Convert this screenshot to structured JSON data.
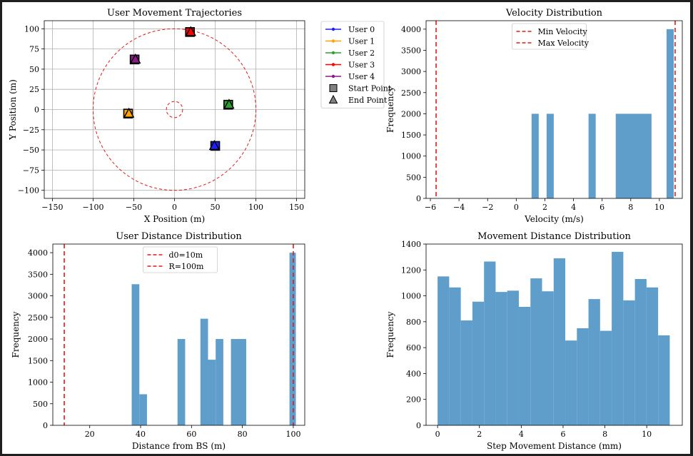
{
  "chart_data": [
    {
      "id": "trajectories",
      "type": "scatter",
      "title": "User Movement Trajectories",
      "xlabel": "X Position (m)",
      "ylabel": "Y Position (m)",
      "xlim": [
        -160,
        160
      ],
      "ylim": [
        -110,
        110
      ],
      "xticks": [
        -150,
        -100,
        -50,
        0,
        50,
        100,
        150
      ],
      "yticks": [
        -100,
        -75,
        -50,
        -25,
        0,
        25,
        50,
        75,
        100
      ],
      "grid": true,
      "circles": [
        {
          "cx": 0,
          "cy": 0,
          "r": 100,
          "color": "#e41a1c",
          "style": "dashed"
        },
        {
          "cx": 0,
          "cy": 0,
          "r": 10,
          "color": "#e41a1c",
          "style": "dashed"
        }
      ],
      "series": [
        {
          "name": "User 0",
          "color": "#1f1fff",
          "start": [
            50,
            -45
          ],
          "end": [
            49,
            -45
          ]
        },
        {
          "name": "User 1",
          "color": "#ffa500",
          "start": [
            -57,
            -5
          ],
          "end": [
            -56,
            -5
          ]
        },
        {
          "name": "User 2",
          "color": "#2ca02c",
          "start": [
            66,
            6
          ],
          "end": [
            67,
            6
          ]
        },
        {
          "name": "User 3",
          "color": "#ff0000",
          "start": [
            19,
            96
          ],
          "end": [
            20,
            96
          ]
        },
        {
          "name": "User 4",
          "color": "#8b1a8b",
          "start": [
            -49,
            62
          ],
          "end": [
            -48,
            62
          ]
        }
      ],
      "legend": {
        "placement": "outside-right",
        "entries": [
          {
            "label": "User 0",
            "kind": "line",
            "color": "#1f1fff"
          },
          {
            "label": "User 1",
            "kind": "line",
            "color": "#ffa500"
          },
          {
            "label": "User 2",
            "kind": "line",
            "color": "#2ca02c"
          },
          {
            "label": "User 3",
            "kind": "line",
            "color": "#ff0000"
          },
          {
            "label": "User 4",
            "kind": "line",
            "color": "#8b1a8b"
          },
          {
            "label": "Start Point",
            "kind": "square",
            "color": "#808080"
          },
          {
            "label": "End Point",
            "kind": "triangle",
            "color": "#808080"
          }
        ]
      }
    },
    {
      "id": "velocity",
      "type": "bar",
      "title": "Velocity Distribution",
      "xlabel": "Velocity (m/s)",
      "ylabel": "Frequency",
      "xlim": [
        -6.3,
        11.6
      ],
      "ylim": [
        0,
        4200
      ],
      "xticks": [
        -6,
        -4,
        -2,
        0,
        2,
        4,
        6,
        8,
        10
      ],
      "yticks": [
        0,
        500,
        1000,
        1500,
        2000,
        2500,
        3000,
        3500,
        4000
      ],
      "grid": false,
      "bar_color": "#5f9ecb",
      "bins": [
        {
          "x0": 1.07,
          "x1": 1.57,
          "value": 2000
        },
        {
          "x0": 2.12,
          "x1": 2.62,
          "value": 2000
        },
        {
          "x0": 5.05,
          "x1": 5.55,
          "value": 2000
        },
        {
          "x0": 6.95,
          "x1": 9.45,
          "value": 2000
        },
        {
          "x0": 10.5,
          "x1": 11.0,
          "value": 4000
        }
      ],
      "vlines": [
        {
          "x": -5.6,
          "label": "Min Velocity",
          "color": "#e41a1c"
        },
        {
          "x": 11.1,
          "label": "Max Velocity",
          "color": "#e41a1c"
        }
      ],
      "legend": {
        "placement": "top-center",
        "entries": [
          "Min Velocity",
          "Max Velocity"
        ]
      }
    },
    {
      "id": "distance",
      "type": "bar",
      "title": "User Distance Distribution",
      "xlabel": "Distance from BS (m)",
      "ylabel": "Frequency",
      "xlim": [
        5.5,
        104.5
      ],
      "ylim": [
        0,
        4200
      ],
      "xticks": [
        20,
        40,
        60,
        80,
        100
      ],
      "yticks": [
        0,
        500,
        1000,
        1500,
        2000,
        2500,
        3000,
        3500,
        4000
      ],
      "grid": false,
      "bar_color": "#5f9ecb",
      "bins": [
        {
          "x0": 36.5,
          "x1": 39.5,
          "value": 3270
        },
        {
          "x0": 39.5,
          "x1": 42.5,
          "value": 720
        },
        {
          "x0": 54.5,
          "x1": 57.5,
          "value": 2000
        },
        {
          "x0": 63.5,
          "x1": 66.5,
          "value": 2470
        },
        {
          "x0": 66.5,
          "x1": 69.5,
          "value": 1520
        },
        {
          "x0": 69.5,
          "x1": 72.5,
          "value": 2000
        },
        {
          "x0": 75.5,
          "x1": 81.5,
          "value": 2000
        },
        {
          "x0": 98.5,
          "x1": 101.0,
          "value": 4000
        }
      ],
      "vlines": [
        {
          "x": 10,
          "label": "d0=10m",
          "color": "#e41a1c"
        },
        {
          "x": 100,
          "label": "R=100m",
          "color": "#e41a1c"
        }
      ],
      "legend": {
        "placement": "top-center",
        "entries": [
          "d0=10m",
          "R=100m"
        ]
      }
    },
    {
      "id": "movement",
      "type": "bar",
      "title": "Movement Distance Distribution",
      "xlabel": "Step Movement Distance (mm)",
      "ylabel": "Frequency",
      "xlim": [
        -0.55,
        11.7
      ],
      "ylim": [
        0,
        1400
      ],
      "xticks": [
        0,
        2,
        4,
        6,
        8,
        10
      ],
      "yticks": [
        0,
        200,
        400,
        600,
        800,
        1000,
        1200,
        1400
      ],
      "grid": false,
      "bar_color": "#5f9ecb",
      "bin_start": 0,
      "bin_width": 0.555,
      "values": [
        1150,
        1065,
        810,
        955,
        1265,
        1030,
        1040,
        915,
        1135,
        1035,
        1290,
        655,
        750,
        975,
        730,
        1340,
        965,
        1130,
        1065,
        695
      ]
    }
  ]
}
